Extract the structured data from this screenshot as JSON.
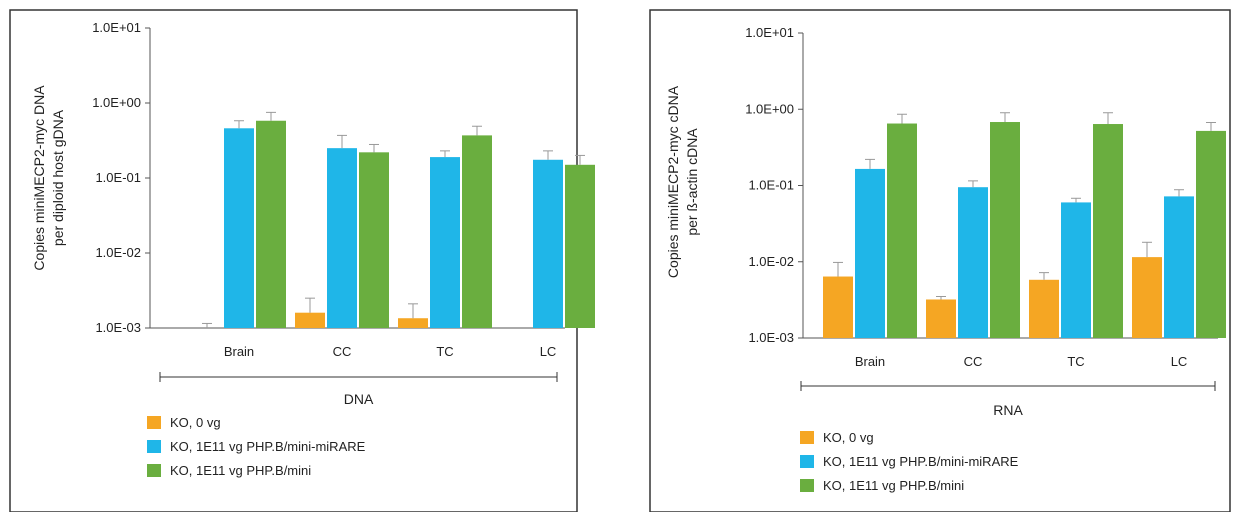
{
  "chart_data": [
    {
      "type": "bar",
      "scale": "log",
      "ylabel_lines": [
        "Copies miniMECP2-myc DNA",
        "per diploid host gDNA"
      ],
      "ylim": [
        0.001,
        10
      ],
      "yticks": [
        "1.0E-03",
        "1.0E-02",
        "1.0E-01",
        "1.0E+00",
        "1.0E+01"
      ],
      "categories": [
        "Brain",
        "CC",
        "TC",
        "LC"
      ],
      "group_label": "DNA",
      "series": [
        {
          "name": "KO, 0 vg",
          "color": "#F5A623",
          "values": [
            0.001,
            0.0016,
            0.00135,
            null
          ],
          "errors": [
            0.00115,
            0.0025,
            0.0021,
            null
          ]
        },
        {
          "name": "KO, 1E11 vg PHP.B/mini-miRARE",
          "color": "#1FB6E8",
          "values": [
            0.46,
            0.25,
            0.19,
            0.175
          ],
          "errors": [
            0.58,
            0.37,
            0.23,
            0.23
          ]
        },
        {
          "name": "KO, 1E11 vg PHP.B/mini",
          "color": "#6AAE3F",
          "values": [
            0.58,
            0.22,
            0.37,
            0.15
          ],
          "errors": [
            0.75,
            0.28,
            0.49,
            0.2
          ]
        }
      ]
    },
    {
      "type": "bar",
      "scale": "log",
      "ylabel_lines": [
        "Copies miniMECP2-myc cDNA",
        "per ß-actin cDNA"
      ],
      "ylim": [
        0.001,
        10
      ],
      "yticks": [
        "1.0E-03",
        "1.0E-02",
        "1.0E-01",
        "1.0E+00",
        "1.0E+01"
      ],
      "categories": [
        "Brain",
        "CC",
        "TC",
        "LC"
      ],
      "group_label": "RNA",
      "series": [
        {
          "name": "KO, 0 vg",
          "color": "#F5A623",
          "values": [
            0.0064,
            0.0032,
            0.0058,
            0.0115
          ],
          "errors": [
            0.0098,
            0.0035,
            0.0072,
            0.018
          ]
        },
        {
          "name": "KO, 1E11 vg PHP.B/mini-miRARE",
          "color": "#1FB6E8",
          "values": [
            0.165,
            0.095,
            0.06,
            0.072
          ],
          "errors": [
            0.22,
            0.115,
            0.068,
            0.088
          ]
        },
        {
          "name": "KO, 1E11 vg PHP.B/mini",
          "color": "#6AAE3F",
          "values": [
            0.65,
            0.68,
            0.64,
            0.52
          ],
          "errors": [
            0.86,
            0.9,
            0.9,
            0.67
          ]
        }
      ]
    }
  ]
}
